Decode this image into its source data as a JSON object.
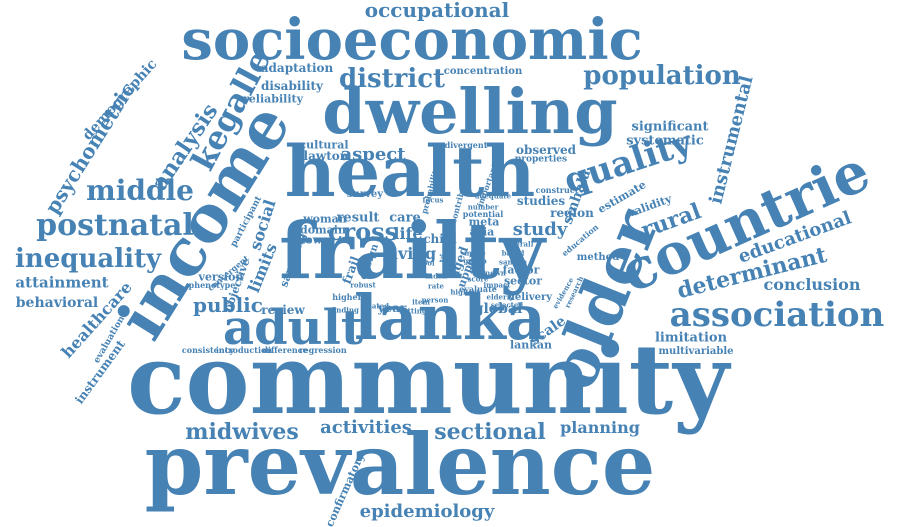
{
  "colors": {
    "word": "#4682b4",
    "background": "#ffffff"
  },
  "words": [
    {
      "text": "community",
      "size": "large"
    },
    {
      "text": "prevalence",
      "size": "large"
    },
    {
      "text": "frailty",
      "size": "large"
    },
    {
      "text": "health",
      "size": "large"
    },
    {
      "text": "income",
      "size": "large"
    },
    {
      "text": "dwelling",
      "size": "large"
    },
    {
      "text": "socioeconomic",
      "size": "large"
    },
    {
      "text": "lanka",
      "size": "large"
    },
    {
      "text": "adult",
      "size": "large"
    },
    {
      "text": "older",
      "size": "large"
    },
    {
      "text": "countrie",
      "size": "large"
    },
    {
      "text": "association",
      "size": "medium"
    },
    {
      "text": "quality",
      "size": "medium"
    },
    {
      "text": "kegalle",
      "size": "medium"
    },
    {
      "text": "district",
      "size": "medium"
    },
    {
      "text": "population",
      "size": "medium"
    },
    {
      "text": "occupational",
      "size": "medium"
    },
    {
      "text": "middle",
      "size": "medium"
    },
    {
      "text": "postnatal",
      "size": "medium"
    },
    {
      "text": "inequality",
      "size": "medium"
    },
    {
      "text": "analysis",
      "size": "medium"
    },
    {
      "text": "rural",
      "size": "medium"
    },
    {
      "text": "determinant",
      "size": "medium"
    },
    {
      "text": "midwives",
      "size": "medium"
    },
    {
      "text": "sectional",
      "size": "medium"
    },
    {
      "text": "activities",
      "size": "medium"
    },
    {
      "text": "epidemiology",
      "size": "medium"
    },
    {
      "text": "psychometric",
      "size": "medium"
    },
    {
      "text": "instrumental",
      "size": "medium"
    },
    {
      "text": "educational",
      "size": "medium"
    },
    {
      "text": "conclusion",
      "size": "medium"
    },
    {
      "text": "cross",
      "size": "medium"
    },
    {
      "text": "aspect",
      "size": "medium"
    },
    {
      "text": "study",
      "size": "medium"
    },
    {
      "text": "public",
      "size": "medium"
    },
    {
      "text": "healthcare",
      "size": "small"
    },
    {
      "text": "attainment",
      "size": "small"
    },
    {
      "text": "behavioral",
      "size": "small"
    },
    {
      "text": "instrument",
      "size": "small"
    },
    {
      "text": "demographic",
      "size": "small"
    },
    {
      "text": "adaptation",
      "size": "small"
    },
    {
      "text": "disability",
      "size": "small"
    },
    {
      "text": "reliability",
      "size": "small"
    },
    {
      "text": "significant",
      "size": "small"
    },
    {
      "text": "systematic",
      "size": "small"
    },
    {
      "text": "observed",
      "size": "small"
    },
    {
      "text": "sinhala",
      "size": "small"
    },
    {
      "text": "region",
      "size": "small"
    },
    {
      "text": "studies",
      "size": "small"
    },
    {
      "text": "estimate",
      "size": "small"
    },
    {
      "text": "validity",
      "size": "small"
    },
    {
      "text": "planning",
      "size": "small"
    },
    {
      "text": "limitation",
      "size": "small"
    },
    {
      "text": "multivariable",
      "size": "small"
    },
    {
      "text": "scale",
      "size": "small"
    },
    {
      "text": "global",
      "size": "small"
    },
    {
      "text": "lankan",
      "size": "small"
    },
    {
      "text": "sector",
      "size": "small"
    },
    {
      "text": "factor",
      "size": "small"
    },
    {
      "text": "review",
      "size": "small"
    },
    {
      "text": "social",
      "size": "small"
    },
    {
      "text": "limits",
      "size": "small"
    },
    {
      "text": "objective",
      "size": "small"
    },
    {
      "text": "version",
      "size": "small"
    },
    {
      "text": "sampling",
      "size": "small"
    },
    {
      "text": "confirmatory",
      "size": "small"
    },
    {
      "text": "living",
      "size": "small"
    },
    {
      "text": "life",
      "size": "small"
    },
    {
      "text": "care",
      "size": "small"
    },
    {
      "text": "result",
      "size": "small"
    },
    {
      "text": "lower",
      "size": "small"
    },
    {
      "text": "woman",
      "size": "small"
    },
    {
      "text": "domain",
      "size": "small"
    },
    {
      "text": "survey",
      "size": "small"
    },
    {
      "text": "lawton",
      "size": "small"
    },
    {
      "text": "cultural",
      "size": "small"
    },
    {
      "text": "concentration",
      "size": "small"
    },
    {
      "text": "year",
      "size": "small"
    },
    {
      "text": "child",
      "size": "small"
    },
    {
      "text": "asia",
      "size": "small"
    },
    {
      "text": "meta",
      "size": "small"
    },
    {
      "text": "frail",
      "size": "small"
    },
    {
      "text": "aged",
      "size": "small"
    },
    {
      "text": "upper",
      "size": "small"
    },
    {
      "text": "delivery",
      "size": "small"
    },
    {
      "text": "consistency",
      "size": "tiny"
    },
    {
      "text": "introduction",
      "size": "tiny"
    },
    {
      "text": "difference",
      "size": "tiny"
    },
    {
      "text": "regression",
      "size": "tiny"
    },
    {
      "text": "phenotype",
      "size": "tiny"
    },
    {
      "text": "convergent",
      "size": "tiny"
    },
    {
      "text": "participant",
      "size": "tiny"
    },
    {
      "text": "divergent",
      "size": "tiny"
    },
    {
      "text": "properties",
      "size": "tiny"
    },
    {
      "text": "construct",
      "size": "tiny"
    },
    {
      "text": "contribution",
      "size": "tiny"
    },
    {
      "text": "probability",
      "size": "tiny"
    },
    {
      "text": "important",
      "size": "tiny"
    },
    {
      "text": "evaluation",
      "size": "tiny"
    },
    {
      "text": "evaluate",
      "size": "tiny"
    },
    {
      "text": "method",
      "size": "tiny"
    },
    {
      "text": "education",
      "size": "tiny"
    },
    {
      "text": "potential",
      "size": "tiny"
    },
    {
      "text": "design",
      "size": "tiny"
    },
    {
      "text": "visit",
      "size": "tiny"
    },
    {
      "text": "number",
      "size": "tiny"
    },
    {
      "text": "mode",
      "size": "tiny"
    },
    {
      "text": "group",
      "size": "tiny"
    },
    {
      "text": "based",
      "size": "tiny"
    },
    {
      "text": "sample",
      "size": "tiny"
    },
    {
      "text": "score",
      "size": "tiny"
    },
    {
      "text": "higher",
      "size": "tiny"
    },
    {
      "text": "related",
      "size": "tiny"
    },
    {
      "text": "person",
      "size": "tiny"
    },
    {
      "text": "evidence",
      "size": "tiny"
    },
    {
      "text": "research",
      "size": "tiny"
    },
    {
      "text": "highest",
      "size": "tiny"
    },
    {
      "text": "robust",
      "size": "tiny"
    },
    {
      "text": "impact",
      "size": "tiny"
    },
    {
      "text": "index",
      "size": "tiny"
    },
    {
      "text": "elderly",
      "size": "tiny"
    },
    {
      "text": "tool",
      "size": "tiny"
    },
    {
      "text": "adequate",
      "size": "tiny"
    },
    {
      "text": "overall",
      "size": "tiny"
    },
    {
      "text": "rate",
      "size": "tiny"
    },
    {
      "text": "finding",
      "size": "tiny"
    },
    {
      "text": "focus",
      "size": "tiny"
    },
    {
      "text": "selected",
      "size": "tiny"
    },
    {
      "text": "setting",
      "size": "tiny"
    },
    {
      "text": "item",
      "size": "tiny"
    },
    {
      "text": "known",
      "size": "tiny"
    }
  ]
}
